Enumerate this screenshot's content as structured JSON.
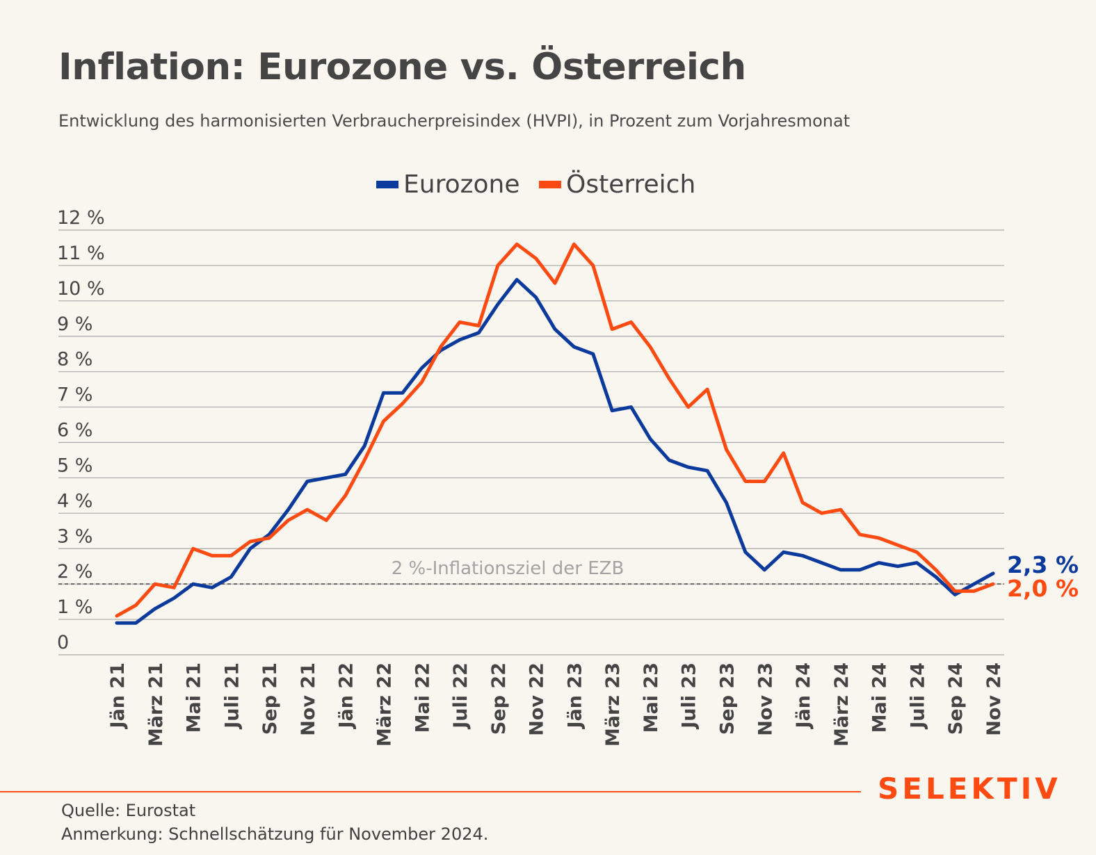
{
  "header": {
    "title": "Inflation: Eurozone vs. Österreich",
    "subtitle": "Entwicklung des harmonisierten Verbraucherpreisindex (HVPI), in Prozent zum Vorjahresmonat"
  },
  "colors": {
    "eurozone": "#0b3a9c",
    "oesterreich": "#ff4a12",
    "grid": "#a9a9a9",
    "text": "#444444",
    "target_line": "#666666",
    "target_label": "#a3a3a3",
    "brand": "#ff4a12"
  },
  "chart_data": {
    "type": "line",
    "x": [
      "Jän 21",
      "Feb 21",
      "März 21",
      "Apr 21",
      "Mai 21",
      "Juni 21",
      "Juli 21",
      "Aug 21",
      "Sep 21",
      "Okt 21",
      "Nov 21",
      "Dez 21",
      "Jän 22",
      "Feb 22",
      "März 22",
      "Apr 22",
      "Mai 22",
      "Juni 22",
      "Juli 22",
      "Aug 22",
      "Sep 22",
      "Okt 22",
      "Nov 22",
      "Dez 22",
      "Jän 23",
      "Feb 23",
      "März 23",
      "Apr 23",
      "Mai 23",
      "Juni 23",
      "Juli 23",
      "Aug 23",
      "Sep 23",
      "Okt 23",
      "Nov 23",
      "Dez 23",
      "Jän 24",
      "Feb 24",
      "März 24",
      "Apr 24",
      "Mai 24",
      "Juni 24",
      "Juli 24",
      "Aug 24",
      "Sep 24",
      "Okt 24",
      "Nov 24"
    ],
    "x_tick_labels": [
      "Jän 21",
      "März 21",
      "Mai 21",
      "Juli 21",
      "Sep 21",
      "Nov 21",
      "Jän 22",
      "März 22",
      "Mai 22",
      "Juli 22",
      "Sep 22",
      "Nov 22",
      "Jän 23",
      "März 23",
      "Mai 23",
      "Juli 23",
      "Sep 23",
      "Nov 23",
      "Jän 24",
      "März 24",
      "Mai 24",
      "Juli 24",
      "Sep 24",
      "Nov 24"
    ],
    "y_tick_labels": [
      "0",
      "1 %",
      "2 %",
      "3 %",
      "4 %",
      "5 %",
      "6 %",
      "7 %",
      "8 %",
      "9 %",
      "10 %",
      "11 %",
      "12 %"
    ],
    "ylim": [
      0,
      12
    ],
    "grid": "horizontal",
    "legend_position": "top-center",
    "series": [
      {
        "name": "Eurozone",
        "color": "#0b3a9c",
        "values": [
          0.9,
          0.9,
          1.3,
          1.6,
          2.0,
          1.9,
          2.2,
          3.0,
          3.4,
          4.1,
          4.9,
          5.0,
          5.1,
          5.9,
          7.4,
          7.4,
          8.1,
          8.6,
          8.9,
          9.1,
          9.9,
          10.6,
          10.1,
          9.2,
          8.7,
          8.5,
          6.9,
          7.0,
          6.1,
          5.5,
          5.3,
          5.2,
          4.3,
          2.9,
          2.4,
          2.9,
          2.8,
          2.6,
          2.4,
          2.4,
          2.6,
          2.5,
          2.6,
          2.2,
          1.7,
          2.0,
          2.3
        ],
        "end_label": "2,3 %"
      },
      {
        "name": "Österreich",
        "color": "#ff4a12",
        "values": [
          1.1,
          1.4,
          2.0,
          1.9,
          3.0,
          2.8,
          2.8,
          3.2,
          3.3,
          3.8,
          4.1,
          3.8,
          4.5,
          5.5,
          6.6,
          7.1,
          7.7,
          8.7,
          9.4,
          9.3,
          11.0,
          11.6,
          11.2,
          10.5,
          11.6,
          11.0,
          9.2,
          9.4,
          8.7,
          7.8,
          7.0,
          7.5,
          5.8,
          4.9,
          4.9,
          5.7,
          4.3,
          4.0,
          4.1,
          3.4,
          3.3,
          3.1,
          2.9,
          2.4,
          1.8,
          1.8,
          2.0
        ],
        "end_label": "2,0 %"
      }
    ],
    "reference_line": {
      "value": 2,
      "label": "2 %-Inflationsziel der EZB"
    }
  },
  "footer": {
    "source": "Quelle: Eurostat",
    "note": "Anmerkung: Schnellschätzung für November 2024.",
    "logo": "SELEKTIV"
  }
}
